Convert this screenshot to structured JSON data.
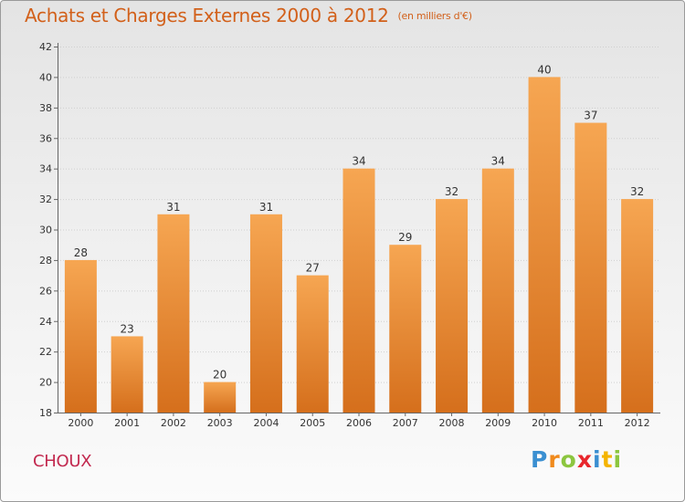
{
  "chart_data": {
    "type": "bar",
    "title": "Achats et Charges Externes 2000 à 2012",
    "subtitle": "(en milliers d'€)",
    "categories": [
      "2000",
      "2001",
      "2002",
      "2003",
      "2004",
      "2005",
      "2006",
      "2007",
      "2008",
      "2009",
      "2010",
      "2011",
      "2012"
    ],
    "values": [
      28,
      23,
      31,
      20,
      31,
      27,
      34,
      29,
      32,
      34,
      40,
      37,
      32
    ],
    "ylim": [
      18,
      42
    ],
    "yticks": [
      18,
      20,
      22,
      24,
      26,
      28,
      30,
      32,
      34,
      36,
      38,
      40,
      42
    ],
    "grid": true,
    "bar_color_top": "#f6a652",
    "bar_color_bottom": "#d56f1c"
  },
  "place_label": "CHOUX",
  "brand": {
    "letters": [
      {
        "ch": "P",
        "color": "#3a8fd1"
      },
      {
        "ch": "r",
        "color": "#f08a1c"
      },
      {
        "ch": "o",
        "color": "#8cc63f"
      },
      {
        "ch": "x",
        "color": "#e8262c"
      },
      {
        "ch": "i",
        "color": "#3a8fd1"
      },
      {
        "ch": "t",
        "color": "#f4b400"
      },
      {
        "ch": "i",
        "color": "#8cc63f"
      }
    ]
  },
  "colors": {
    "title": "#d2601a",
    "place": "#c2294f"
  }
}
